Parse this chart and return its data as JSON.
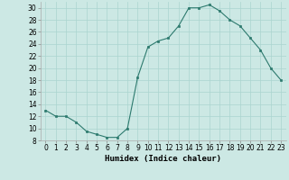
{
  "x": [
    0,
    1,
    2,
    3,
    4,
    5,
    6,
    7,
    8,
    9,
    10,
    11,
    12,
    13,
    14,
    15,
    16,
    17,
    18,
    19,
    20,
    21,
    22,
    23
  ],
  "y": [
    13,
    12,
    12,
    11,
    9.5,
    9,
    8.5,
    8.5,
    10,
    18.5,
    23.5,
    24.5,
    25,
    27,
    30,
    30,
    30.5,
    29.5,
    28,
    27,
    25,
    23,
    20,
    18
  ],
  "line_color": "#2d7a6e",
  "marker_color": "#2d7a6e",
  "bg_color": "#cce8e4",
  "grid_color": "#aad4cf",
  "xlabel": "Humidex (Indice chaleur)",
  "xlim": [
    -0.5,
    23.5
  ],
  "ylim": [
    8,
    31
  ],
  "yticks": [
    8,
    10,
    12,
    14,
    16,
    18,
    20,
    22,
    24,
    26,
    28,
    30
  ],
  "xticks": [
    0,
    1,
    2,
    3,
    4,
    5,
    6,
    7,
    8,
    9,
    10,
    11,
    12,
    13,
    14,
    15,
    16,
    17,
    18,
    19,
    20,
    21,
    22,
    23
  ],
  "label_fontsize": 6.5,
  "tick_fontsize": 5.5
}
